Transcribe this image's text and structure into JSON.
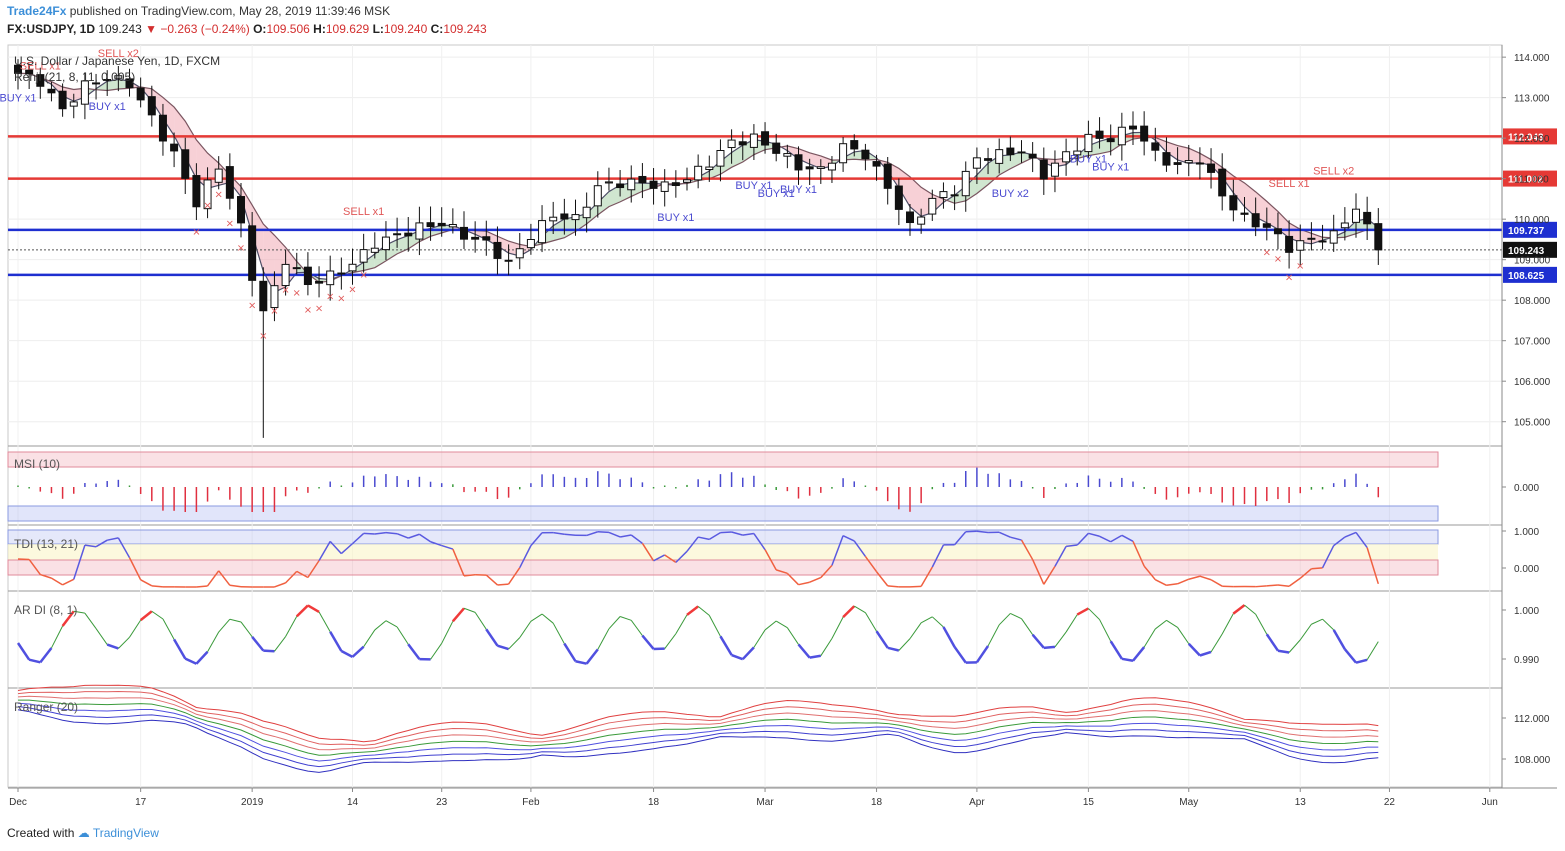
{
  "header": {
    "brand": "Trade24Fx",
    "publish_text": "published on TradingView.com, May 28, 2019 11:39:46 MSK",
    "symbol": "FX:USDJPY, 1D",
    "last": "109.243",
    "change": "−0.263 (−0.24%)",
    "open": "109.506",
    "high": "109.629",
    "low": "109.240",
    "close": "109.243"
  },
  "footer": {
    "created_with": "Created with",
    "brand": "TradingView"
  },
  "chart_data": {
    "type": "candlestick",
    "title": "U.S. Dollar / Japanese Yen, 1D, FXCM",
    "indicator_label": "Renji (21, 8, 11, 0.005)",
    "ylim": [
      104.4,
      114.3
    ],
    "y_ticks": [
      "114.000",
      "113.000",
      "112.000",
      "111.000",
      "110.000",
      "109.000",
      "108.000",
      "107.000",
      "106.000",
      "105.000"
    ],
    "x_ticks": [
      "Dec",
      "17",
      "2019",
      "14",
      "23",
      "Feb",
      "18",
      "Mar",
      "18",
      "Apr",
      "15",
      "May",
      "13",
      "22",
      "Jun"
    ],
    "x_tick_index": [
      0,
      11,
      21,
      30,
      38,
      46,
      57,
      67,
      77,
      86,
      96,
      105,
      115,
      123,
      132
    ],
    "n_bars": 123,
    "price_levels": [
      {
        "value": 112.043,
        "label": "112.043",
        "color": "#e53935"
      },
      {
        "value": 111.002,
        "label": "111.002",
        "color": "#e53935"
      },
      {
        "value": 109.737,
        "label": "109.737",
        "color": "#1e2fd0"
      },
      {
        "value": 108.625,
        "label": "108.625",
        "color": "#1e2fd0"
      }
    ],
    "last_price": {
      "value": 109.243,
      "label": "109.243",
      "color": "#111111"
    },
    "close_anchors": [
      [
        0,
        113.6
      ],
      [
        2,
        113.4
      ],
      [
        4,
        112.7
      ],
      [
        6,
        113.3
      ],
      [
        8,
        113.5
      ],
      [
        10,
        113.35
      ],
      [
        12,
        112.5
      ],
      [
        14,
        111.6
      ],
      [
        16,
        110.4
      ],
      [
        18,
        111.3
      ],
      [
        20,
        109.8
      ],
      [
        21,
        108.6
      ],
      [
        22,
        107.7
      ],
      [
        23,
        108.3
      ],
      [
        24,
        109.0
      ],
      [
        26,
        108.4
      ],
      [
        28,
        108.6
      ],
      [
        30,
        108.9
      ],
      [
        32,
        109.4
      ],
      [
        34,
        109.6
      ],
      [
        36,
        109.8
      ],
      [
        38,
        109.9
      ],
      [
        40,
        109.6
      ],
      [
        42,
        109.4
      ],
      [
        44,
        108.9
      ],
      [
        46,
        109.6
      ],
      [
        48,
        110.1
      ],
      [
        50,
        110.0
      ],
      [
        52,
        110.8
      ],
      [
        54,
        110.9
      ],
      [
        56,
        110.9
      ],
      [
        58,
        110.8
      ],
      [
        60,
        111.0
      ],
      [
        62,
        111.4
      ],
      [
        64,
        111.9
      ],
      [
        66,
        112.0
      ],
      [
        68,
        111.7
      ],
      [
        70,
        111.3
      ],
      [
        72,
        111.2
      ],
      [
        74,
        111.8
      ],
      [
        76,
        111.6
      ],
      [
        78,
        110.8
      ],
      [
        80,
        109.8
      ],
      [
        82,
        110.5
      ],
      [
        84,
        110.7
      ],
      [
        86,
        111.5
      ],
      [
        88,
        111.6
      ],
      [
        90,
        111.7
      ],
      [
        92,
        111.1
      ],
      [
        94,
        111.6
      ],
      [
        96,
        112.0
      ],
      [
        98,
        112.0
      ],
      [
        100,
        112.3
      ],
      [
        102,
        111.6
      ],
      [
        104,
        111.3
      ],
      [
        106,
        111.5
      ],
      [
        108,
        110.6
      ],
      [
        110,
        110.0
      ],
      [
        112,
        109.8
      ],
      [
        114,
        109.3
      ],
      [
        116,
        109.5
      ],
      [
        118,
        109.6
      ],
      [
        120,
        110.3
      ],
      [
        122,
        109.24
      ]
    ],
    "signals": [
      {
        "text": "SELL x1",
        "bar": 2,
        "price": 113.7,
        "color": "#e05757"
      },
      {
        "text": "SELL x2",
        "bar": 9,
        "price": 114.0,
        "color": "#e05757"
      },
      {
        "text": "BUY x1",
        "bar": 0,
        "price": 112.9,
        "color": "#4a4ad0"
      },
      {
        "text": "BUY x1",
        "bar": 8,
        "price": 112.7,
        "color": "#4a4ad0"
      },
      {
        "text": "SELL x1",
        "bar": 31,
        "price": 110.1,
        "color": "#e05757"
      },
      {
        "text": "BUY x1",
        "bar": 59,
        "price": 109.95,
        "color": "#4a4ad0"
      },
      {
        "text": "BUY x1",
        "bar": 66,
        "price": 110.75,
        "color": "#4a4ad0"
      },
      {
        "text": "BUY x1",
        "bar": 68,
        "price": 110.55,
        "color": "#4a4ad0"
      },
      {
        "text": "BUY x1",
        "bar": 70,
        "price": 110.65,
        "color": "#4a4ad0"
      },
      {
        "text": "BUY x2",
        "bar": 89,
        "price": 110.55,
        "color": "#4a4ad0"
      },
      {
        "text": "BUY x1",
        "bar": 96,
        "price": 111.4,
        "color": "#4a4ad0"
      },
      {
        "text": "BUY x1",
        "bar": 98,
        "price": 111.2,
        "color": "#4a4ad0"
      },
      {
        "text": "SELL x1",
        "bar": 114,
        "price": 110.8,
        "color": "#e05757"
      },
      {
        "text": "SELL x2",
        "bar": 118,
        "price": 111.1,
        "color": "#e05757"
      }
    ],
    "panels": [
      {
        "label": "MSI (10)",
        "ticks": [
          "0.000"
        ]
      },
      {
        "label": "TDI (13, 21)",
        "ticks": [
          "1.000",
          "0.000"
        ]
      },
      {
        "label": "AR DI (8, 1)",
        "ticks": [
          "1.000",
          "0.990"
        ]
      },
      {
        "label": "Ranger (20)",
        "ticks": [
          "112.000",
          "108.000"
        ]
      }
    ]
  }
}
